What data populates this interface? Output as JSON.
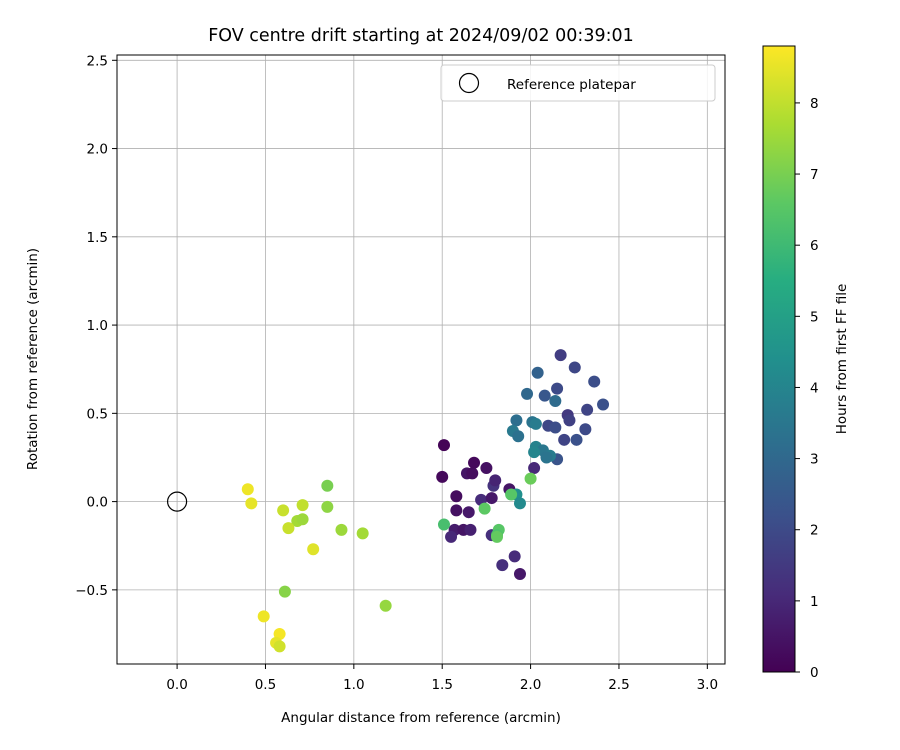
{
  "chart_data": {
    "type": "scatter",
    "title": "FOV centre drift starting at 2024/09/02 00:39:01",
    "xlabel": "Angular distance from reference (arcmin)",
    "ylabel": "Rotation from reference (arcmin)",
    "xlim": [
      -0.34,
      3.1
    ],
    "ylim": [
      -0.92,
      2.53
    ],
    "xticks": [
      0.0,
      0.5,
      1.0,
      1.5,
      2.0,
      2.5,
      3.0
    ],
    "xtick_labels": [
      "0.0",
      "0.5",
      "1.0",
      "1.5",
      "2.0",
      "2.5",
      "3.0"
    ],
    "yticks": [
      -0.5,
      0.0,
      0.5,
      1.0,
      1.5,
      2.0,
      2.5
    ],
    "ytick_labels": [
      "−0.5",
      "0.0",
      "0.5",
      "1.0",
      "1.5",
      "2.0",
      "2.5"
    ],
    "grid": true,
    "legend": {
      "position": "top-right",
      "label": "Reference platepar"
    },
    "reference_point": {
      "x": 0.0,
      "y": 0.0
    },
    "colorbar": {
      "label": "Hours from first FF file",
      "range": [
        0,
        8.8
      ],
      "ticks": [
        0,
        1,
        2,
        3,
        4,
        5,
        6,
        7,
        8
      ],
      "tick_labels": [
        "0",
        "1",
        "2",
        "3",
        "4",
        "5",
        "6",
        "7",
        "8"
      ],
      "colormap": "viridis"
    },
    "points": [
      {
        "x": 1.51,
        "y": 0.32,
        "h": 0.1
      },
      {
        "x": 1.5,
        "y": 0.14,
        "h": 0.2
      },
      {
        "x": 1.58,
        "y": 0.03,
        "h": 0.3
      },
      {
        "x": 1.58,
        "y": -0.05,
        "h": 0.4
      },
      {
        "x": 1.64,
        "y": 0.16,
        "h": 0.5
      },
      {
        "x": 1.67,
        "y": 0.16,
        "h": 0.3
      },
      {
        "x": 1.68,
        "y": 0.22,
        "h": 0.2
      },
      {
        "x": 1.65,
        "y": -0.06,
        "h": 0.6
      },
      {
        "x": 1.57,
        "y": -0.16,
        "h": 0.7
      },
      {
        "x": 1.62,
        "y": -0.16,
        "h": 0.5
      },
      {
        "x": 1.66,
        "y": -0.16,
        "h": 0.8
      },
      {
        "x": 1.55,
        "y": -0.2,
        "h": 1.0
      },
      {
        "x": 1.72,
        "y": 0.01,
        "h": 1.1
      },
      {
        "x": 1.75,
        "y": 0.19,
        "h": 0.4
      },
      {
        "x": 1.78,
        "y": 0.02,
        "h": 0.6
      },
      {
        "x": 1.79,
        "y": 0.09,
        "h": 1.3
      },
      {
        "x": 1.8,
        "y": 0.12,
        "h": 0.9
      },
      {
        "x": 1.78,
        "y": -0.19,
        "h": 1.2
      },
      {
        "x": 1.84,
        "y": -0.36,
        "h": 1.2
      },
      {
        "x": 1.88,
        "y": 0.07,
        "h": 0.5
      },
      {
        "x": 1.91,
        "y": -0.31,
        "h": 1.1
      },
      {
        "x": 1.94,
        "y": -0.41,
        "h": 0.6
      },
      {
        "x": 2.02,
        "y": 0.19,
        "h": 1.0
      },
      {
        "x": 2.17,
        "y": 0.83,
        "h": 1.6
      },
      {
        "x": 2.25,
        "y": 0.76,
        "h": 1.9
      },
      {
        "x": 2.36,
        "y": 0.68,
        "h": 2.1
      },
      {
        "x": 2.15,
        "y": 0.64,
        "h": 2.0
      },
      {
        "x": 2.08,
        "y": 0.6,
        "h": 2.4
      },
      {
        "x": 2.41,
        "y": 0.55,
        "h": 2.2
      },
      {
        "x": 2.32,
        "y": 0.52,
        "h": 1.8
      },
      {
        "x": 2.21,
        "y": 0.49,
        "h": 1.5
      },
      {
        "x": 2.22,
        "y": 0.46,
        "h": 1.7
      },
      {
        "x": 2.1,
        "y": 0.43,
        "h": 1.9
      },
      {
        "x": 2.14,
        "y": 0.42,
        "h": 2.1
      },
      {
        "x": 2.31,
        "y": 0.41,
        "h": 2.0
      },
      {
        "x": 2.19,
        "y": 0.35,
        "h": 1.8
      },
      {
        "x": 2.26,
        "y": 0.35,
        "h": 2.2
      },
      {
        "x": 2.15,
        "y": 0.24,
        "h": 2.3
      },
      {
        "x": 2.04,
        "y": 0.73,
        "h": 2.8
      },
      {
        "x": 1.98,
        "y": 0.61,
        "h": 3.0
      },
      {
        "x": 2.14,
        "y": 0.57,
        "h": 3.1
      },
      {
        "x": 1.92,
        "y": 0.46,
        "h": 3.2
      },
      {
        "x": 2.01,
        "y": 0.45,
        "h": 3.4
      },
      {
        "x": 2.03,
        "y": 0.44,
        "h": 3.7
      },
      {
        "x": 1.9,
        "y": 0.4,
        "h": 3.6
      },
      {
        "x": 1.93,
        "y": 0.37,
        "h": 3.3
      },
      {
        "x": 2.03,
        "y": 0.31,
        "h": 3.9
      },
      {
        "x": 2.07,
        "y": 0.29,
        "h": 3.5
      },
      {
        "x": 2.02,
        "y": 0.28,
        "h": 4.0
      },
      {
        "x": 2.11,
        "y": 0.26,
        "h": 3.7
      },
      {
        "x": 2.09,
        "y": 0.25,
        "h": 3.4
      },
      {
        "x": 1.92,
        "y": 0.04,
        "h": 4.4
      },
      {
        "x": 1.94,
        "y": -0.01,
        "h": 4.2
      },
      {
        "x": 1.89,
        "y": 0.04,
        "h": 6.5
      },
      {
        "x": 2.0,
        "y": 0.13,
        "h": 6.8
      },
      {
        "x": 1.74,
        "y": -0.04,
        "h": 6.6
      },
      {
        "x": 1.51,
        "y": -0.13,
        "h": 6.2
      },
      {
        "x": 1.82,
        "y": -0.16,
        "h": 6.5
      },
      {
        "x": 1.81,
        "y": -0.19,
        "h": 6.3
      },
      {
        "x": 1.81,
        "y": -0.2,
        "h": 6.7
      },
      {
        "x": 0.85,
        "y": 0.09,
        "h": 7.0
      },
      {
        "x": 0.85,
        "y": -0.03,
        "h": 7.3
      },
      {
        "x": 0.93,
        "y": -0.16,
        "h": 7.5
      },
      {
        "x": 1.05,
        "y": -0.18,
        "h": 7.6
      },
      {
        "x": 1.18,
        "y": -0.59,
        "h": 7.4
      },
      {
        "x": 0.61,
        "y": -0.51,
        "h": 7.2
      },
      {
        "x": 0.68,
        "y": -0.11,
        "h": 7.6
      },
      {
        "x": 0.71,
        "y": -0.1,
        "h": 7.5
      },
      {
        "x": 0.71,
        "y": -0.02,
        "h": 8.0
      },
      {
        "x": 0.6,
        "y": -0.05,
        "h": 8.1
      },
      {
        "x": 0.63,
        "y": -0.15,
        "h": 8.1
      },
      {
        "x": 0.77,
        "y": -0.27,
        "h": 8.4
      },
      {
        "x": 0.4,
        "y": 0.07,
        "h": 8.6
      },
      {
        "x": 0.42,
        "y": -0.01,
        "h": 8.5
      },
      {
        "x": 0.49,
        "y": -0.65,
        "h": 8.6
      },
      {
        "x": 0.58,
        "y": -0.75,
        "h": 8.7
      },
      {
        "x": 0.56,
        "y": -0.8,
        "h": 8.5
      },
      {
        "x": 0.58,
        "y": -0.82,
        "h": 8.2
      }
    ]
  }
}
